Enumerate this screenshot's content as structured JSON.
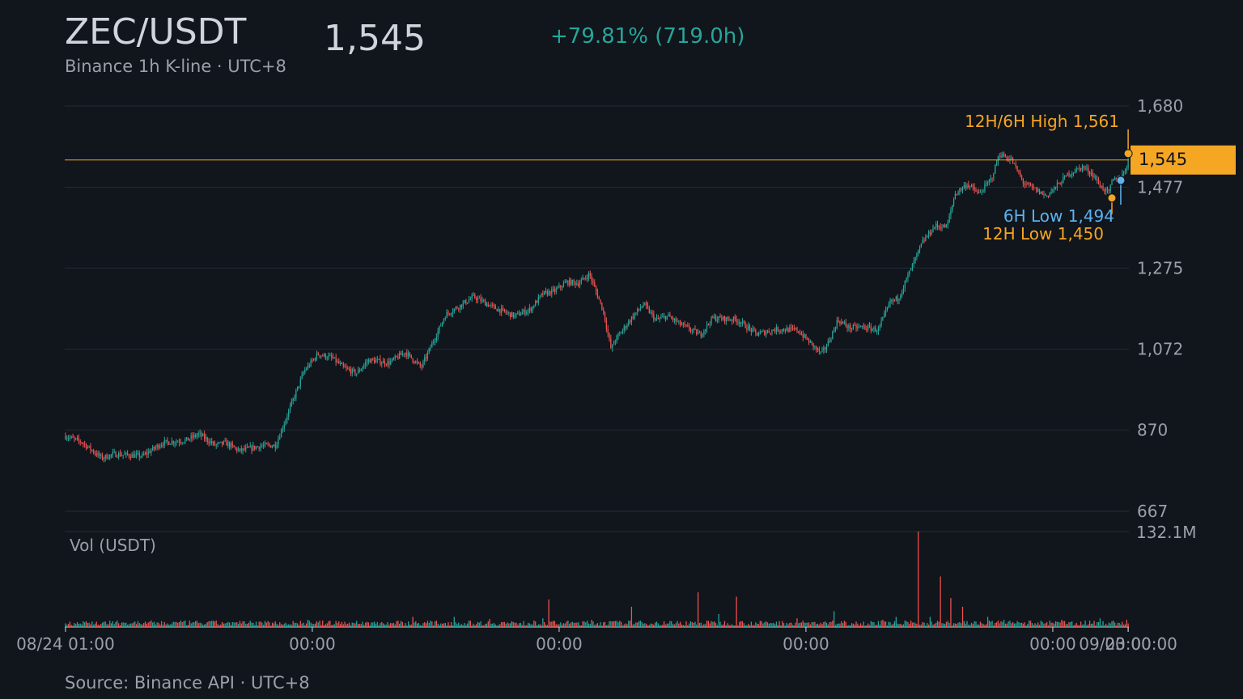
{
  "header": {
    "symbol": "ZEC/USDT",
    "last_price": "1,545",
    "change": "+79.81% (719.0h)",
    "subtitle": "Binance 1h K-line · UTC+8"
  },
  "footer": {
    "source": "Source: Binance API · UTC+8"
  },
  "colors": {
    "background": "#11151c",
    "up": "#26a69a",
    "down": "#ef5350",
    "accent": "#f5a623",
    "six_hour": "#5ab4f0",
    "grid": "#262c36",
    "text_muted": "#9aa0aa"
  },
  "chart_data": {
    "type": "candlestick",
    "interval": "1h",
    "x_ticks": [
      "08/24 01:00",
      "00:00",
      "00:00",
      "00:00",
      "00:00",
      "00:00",
      "09/23 00:00"
    ],
    "y_ticks": [
      "1,680",
      "1,477",
      "1,275",
      "1,072",
      "870",
      "667"
    ],
    "y_tick_values": [
      1680,
      1477,
      1275,
      1072,
      870,
      667
    ],
    "ylim": [
      667,
      1680
    ],
    "last_price": 1545,
    "last_price_label": "1,545",
    "annotations": {
      "high_label": "12H/6H High 1,561",
      "high_value": 1561,
      "low6_label": "6H Low 1,494",
      "low6_value": 1494,
      "low12_label": "12H Low 1,450",
      "low12_value": 1450
    },
    "close_path": [
      [
        0,
        855
      ],
      [
        20,
        840
      ],
      [
        45,
        800
      ],
      [
        60,
        810
      ],
      [
        95,
        805
      ],
      [
        120,
        838
      ],
      [
        150,
        845
      ],
      [
        165,
        860
      ],
      [
        185,
        832
      ],
      [
        198,
        838
      ],
      [
        215,
        818
      ],
      [
        240,
        830
      ],
      [
        260,
        832
      ],
      [
        295,
        1017
      ],
      [
        312,
        1060
      ],
      [
        330,
        1050
      ],
      [
        345,
        1024
      ],
      [
        360,
        1012
      ],
      [
        375,
        1045
      ],
      [
        400,
        1038
      ],
      [
        420,
        1065
      ],
      [
        440,
        1027
      ],
      [
        470,
        1158
      ],
      [
        505,
        1203
      ],
      [
        530,
        1176
      ],
      [
        555,
        1155
      ],
      [
        575,
        1172
      ],
      [
        590,
        1210
      ],
      [
        605,
        1218
      ],
      [
        620,
        1240
      ],
      [
        635,
        1237
      ],
      [
        648,
        1260
      ],
      [
        665,
        1168
      ],
      [
        675,
        1070
      ],
      [
        678,
        1090
      ],
      [
        700,
        1150
      ],
      [
        715,
        1185
      ],
      [
        730,
        1145
      ],
      [
        745,
        1155
      ],
      [
        760,
        1135
      ],
      [
        785,
        1108
      ],
      [
        800,
        1150
      ],
      [
        830,
        1146
      ],
      [
        855,
        1110
      ],
      [
        880,
        1122
      ],
      [
        905,
        1120
      ],
      [
        920,
        1090
      ],
      [
        935,
        1060
      ],
      [
        945,
        1095
      ],
      [
        955,
        1145
      ],
      [
        970,
        1125
      ],
      [
        985,
        1128
      ],
      [
        1005,
        1120
      ],
      [
        1020,
        1190
      ],
      [
        1030,
        1200
      ],
      [
        1045,
        1270
      ],
      [
        1060,
        1340
      ],
      [
        1075,
        1380
      ],
      [
        1090,
        1378
      ],
      [
        1100,
        1460
      ],
      [
        1115,
        1485
      ],
      [
        1130,
        1460
      ],
      [
        1145,
        1498
      ],
      [
        1155,
        1560
      ],
      [
        1170,
        1545
      ],
      [
        1185,
        1487
      ],
      [
        1200,
        1470
      ],
      [
        1213,
        1455
      ],
      [
        1225,
        1478
      ],
      [
        1240,
        1510
      ],
      [
        1258,
        1528
      ],
      [
        1270,
        1510
      ],
      [
        1280,
        1480
      ],
      [
        1290,
        1462
      ],
      [
        1295,
        1495
      ],
      [
        1305,
        1500
      ],
      [
        1316,
        1545
      ]
    ],
    "volume": {
      "label": "Vol (USDT)",
      "max_label": "132.1M",
      "max_value": 132.1,
      "unit": "M USDT",
      "spikes": [
        [
          25,
          8
        ],
        [
          70,
          6
        ],
        [
          83,
          5
        ],
        [
          126,
          5
        ],
        [
          180,
          8
        ],
        [
          218,
          5
        ],
        [
          258,
          5
        ],
        [
          300,
          10
        ],
        [
          430,
          14
        ],
        [
          480,
          14
        ],
        [
          525,
          11
        ],
        [
          557,
          6
        ],
        [
          590,
          12
        ],
        [
          598,
          38
        ],
        [
          650,
          10
        ],
        [
          668,
          7
        ],
        [
          700,
          28
        ],
        [
          782,
          48
        ],
        [
          808,
          18
        ],
        [
          829,
          42
        ],
        [
          860,
          8
        ],
        [
          905,
          12
        ],
        [
          950,
          22
        ],
        [
          1010,
          10
        ],
        [
          1027,
          14
        ],
        [
          1034,
          3
        ],
        [
          1040,
          8
        ],
        [
          1055,
          132.1
        ],
        [
          1070,
          14
        ],
        [
          1082,
          70
        ],
        [
          1095,
          40
        ],
        [
          1110,
          28
        ],
        [
          1140,
          14
        ],
        [
          1160,
          10
        ],
        [
          1232,
          10
        ],
        [
          1280,
          12
        ],
        [
          1313,
          10
        ]
      ]
    }
  }
}
